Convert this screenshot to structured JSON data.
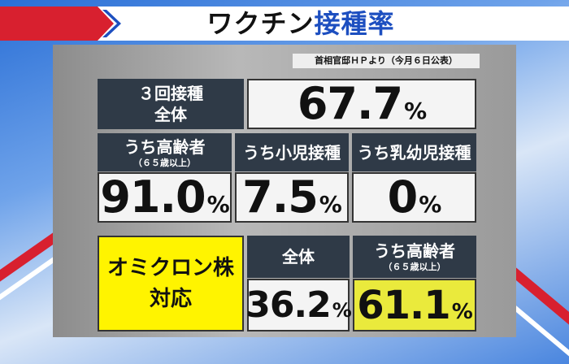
{
  "title": {
    "part1": "ワクチン",
    "part2": "接種率"
  },
  "source": "首相官邸ＨＰより（今月６日公表）",
  "booster": {
    "label_lines": [
      "３回接種",
      "全体"
    ],
    "value": "67.7",
    "unit": "%"
  },
  "subgroups": [
    {
      "label": "うち高齢者",
      "note": "（６５歳以上）",
      "value": "91.0",
      "unit": "%"
    },
    {
      "label": "うち小児接種",
      "value": "7.5",
      "unit": "%"
    },
    {
      "label": "うち乳幼児接種",
      "value": "0",
      "unit": "%"
    }
  ],
  "omicron": {
    "label_lines": [
      "オミクロン株",
      "対応"
    ],
    "groups": [
      {
        "label": "全体",
        "value": "36.2",
        "unit": "%"
      },
      {
        "label": "うち高齢者",
        "note": "（６５歳以上）",
        "value": "61.1",
        "unit": "%"
      }
    ]
  }
}
